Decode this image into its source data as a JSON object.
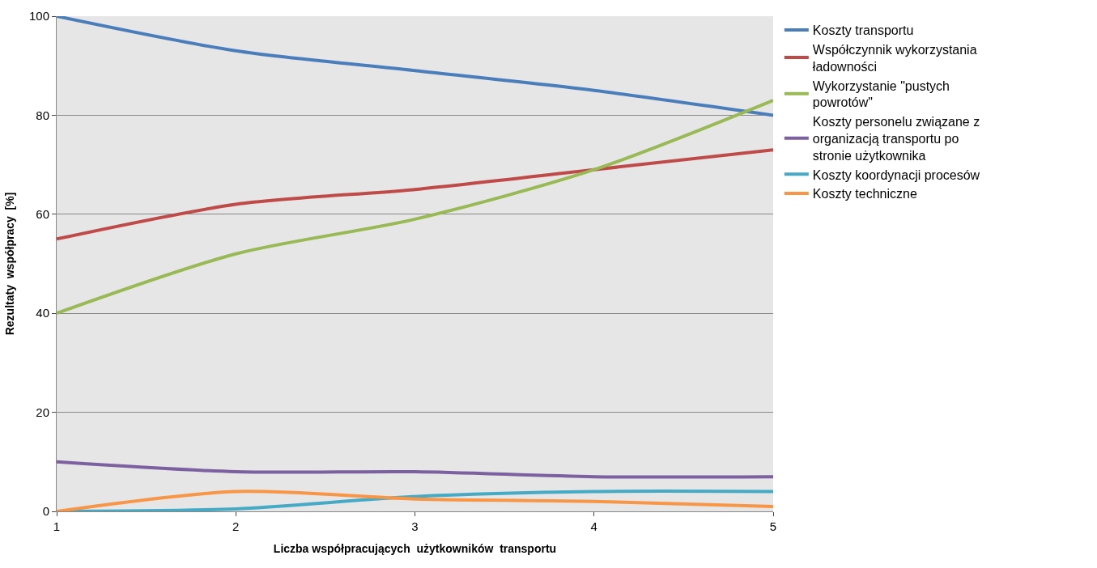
{
  "chart_data": {
    "type": "line",
    "xlabel": "Liczba współpracujących  użytkowników  transportu",
    "ylabel": "Rezultaty  współpracy  [%]",
    "x": [
      1,
      2,
      3,
      4,
      5
    ],
    "xlim": [
      1,
      5
    ],
    "xticks": [
      1,
      2,
      3,
      4,
      5
    ],
    "ylim": [
      0,
      100
    ],
    "yticks": [
      0,
      20,
      40,
      60,
      80,
      100
    ],
    "grid": "y",
    "legend": "right",
    "marker": "none",
    "line_style": "solid",
    "series": [
      {
        "name": "Koszty transportu",
        "color": "#4a7ebb",
        "values": [
          100,
          93,
          89,
          85,
          80
        ]
      },
      {
        "name": "Współczynnik wykorzystania ładowności",
        "color": "#be4b48",
        "values": [
          55,
          62,
          65,
          69,
          73
        ]
      },
      {
        "name": "Wykorzystanie \"pustych powrotów\"",
        "color": "#98b954",
        "values": [
          40,
          52,
          59,
          69,
          83
        ]
      },
      {
        "name": "Koszty personelu związane z organizacją transportu po stronie użytkownika",
        "color": "#7d60a0",
        "values": [
          10,
          8,
          8,
          7,
          7
        ]
      },
      {
        "name": "Koszty koordynacji procesów",
        "color": "#46aac5",
        "values": [
          0,
          0.5,
          3,
          4,
          4
        ]
      },
      {
        "name": "Koszty techniczne",
        "color": "#f79646",
        "values": [
          0,
          4,
          2.5,
          2,
          1
        ]
      }
    ]
  }
}
